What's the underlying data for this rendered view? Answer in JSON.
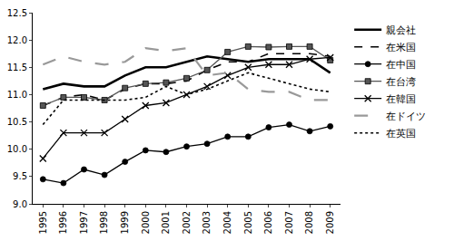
{
  "chart_data": {
    "type": "line",
    "categories": [
      "1995",
      "1996",
      "1997",
      "1998",
      "1999",
      "2000",
      "2001",
      "2002",
      "2003",
      "2004",
      "2005",
      "2006",
      "2007",
      "2008",
      "2009"
    ],
    "series": [
      {
        "name": "親会社",
        "color": "#000000",
        "line_style": "bold",
        "marker": "none",
        "values": [
          11.1,
          11.2,
          11.15,
          11.15,
          11.35,
          11.5,
          11.5,
          11.6,
          11.7,
          11.65,
          11.6,
          11.65,
          11.65,
          11.65,
          11.4
        ]
      },
      {
        "name": "在米国",
        "color": "#000000",
        "line_style": "dash",
        "marker": "none",
        "values": [
          10.8,
          10.95,
          11.0,
          10.9,
          11.1,
          11.2,
          11.2,
          11.25,
          11.45,
          11.6,
          11.6,
          11.75,
          11.75,
          11.75,
          11.7
        ]
      },
      {
        "name": "在中国",
        "color": "#000000",
        "line_style": "solid",
        "marker": "circle",
        "values": [
          9.45,
          9.38,
          9.63,
          9.53,
          9.77,
          9.98,
          9.95,
          10.05,
          10.1,
          10.23,
          10.23,
          10.4,
          10.45,
          10.33,
          10.42
        ]
      },
      {
        "name": "在台湾",
        "color": "#555555",
        "line_style": "solid",
        "marker": "square",
        "values": [
          10.8,
          10.95,
          10.95,
          10.9,
          11.12,
          11.2,
          11.22,
          11.3,
          11.45,
          11.78,
          11.88,
          11.87,
          11.88,
          11.88,
          11.63
        ]
      },
      {
        "name": "在韓国",
        "color": "#000000",
        "line_style": "solid",
        "marker": "x",
        "values": [
          9.83,
          10.3,
          10.3,
          10.3,
          10.55,
          10.8,
          10.85,
          11.0,
          11.15,
          11.35,
          11.5,
          11.55,
          11.55,
          11.65,
          11.68
        ]
      },
      {
        "name": "在ドイツ",
        "color": "#999999",
        "line_style": "longdash",
        "marker": "none",
        "values": [
          11.55,
          11.7,
          11.6,
          11.55,
          11.6,
          11.85,
          11.8,
          11.85,
          11.35,
          11.4,
          11.1,
          11.05,
          11.05,
          10.9,
          10.9
        ]
      },
      {
        "name": "在英国",
        "color": "#000000",
        "line_style": "dot",
        "marker": "none",
        "values": [
          10.45,
          10.9,
          10.9,
          10.9,
          10.9,
          10.95,
          11.15,
          11.0,
          11.1,
          11.25,
          11.4,
          11.3,
          11.2,
          11.1,
          11.05
        ]
      }
    ],
    "ylim": [
      9.0,
      12.5
    ],
    "yticks": [
      {
        "value": 9,
        "label": "9.0"
      },
      9.5,
      {
        "value": 10,
        "label": "10.0"
      },
      10.5,
      {
        "value": 11,
        "label": "11.0"
      },
      11.5,
      {
        "value": 12,
        "label": "12.0"
      },
      12.5
    ],
    "grid": false,
    "legend": "right"
  }
}
